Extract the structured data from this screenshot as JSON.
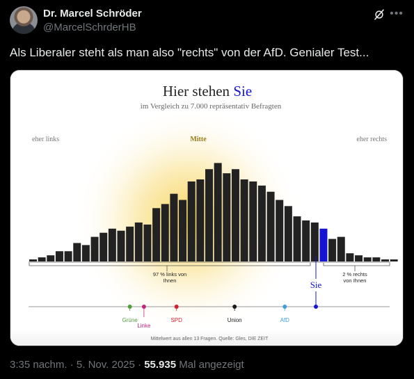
{
  "author": {
    "name": "Dr. Marcel Schröder",
    "handle": "@MarcelSchrderHB"
  },
  "tweet": {
    "text": "Als Liberaler steht als man also \"rechts\" von der AfD. Genialer Test..."
  },
  "meta": {
    "time": "3:35 nachm.",
    "date": "5. Nov. 2025",
    "separator": "·",
    "views": "55.935",
    "views_label": "Mal angezeigt"
  },
  "icons": {
    "grok": "grok-icon",
    "more": "more-icon",
    "avatar": "avatar"
  },
  "colors": {
    "bar": "#222222",
    "highlight": "#1414d2",
    "glow": "#f5d256",
    "gruene": "#4f9e3a",
    "linke": "#c2257c",
    "spd": "#d3202f",
    "union": "#1a1a1a",
    "afd": "#3e9fd8"
  },
  "chart_data": {
    "type": "bar",
    "title_prefix": "Hier stehen ",
    "title_highlight": "Sie",
    "subtitle": "im Vergleich zu 7.000 repräsentativ Befragten",
    "left_label": "eher links",
    "center_label": "Mitte",
    "right_label": "eher rechts",
    "values": [
      1,
      2,
      3,
      5,
      5,
      9,
      8,
      12,
      14,
      16,
      15,
      17,
      19,
      18,
      26,
      28,
      33,
      30,
      39,
      40,
      45,
      48,
      43,
      45,
      40,
      39,
      37,
      34,
      30,
      27,
      22,
      20,
      19,
      16,
      11,
      12,
      4,
      3,
      2,
      2,
      1,
      1
    ],
    "user_bar_index": 33,
    "user_label": "Sie",
    "left_annotation_line1": "97 % links von",
    "left_annotation_line2": "Ihnen",
    "right_annotation_line1": "2 % rechts",
    "right_annotation_line2": "von Ihnen",
    "parties": [
      {
        "name": "Grüne",
        "position": 11,
        "color_key": "gruene",
        "label_row": 0
      },
      {
        "name": "Linke",
        "position": 12.6,
        "color_key": "linke",
        "label_row": 1
      },
      {
        "name": "SPD",
        "position": 16.3,
        "color_key": "spd",
        "label_row": 0
      },
      {
        "name": "Union",
        "position": 22.9,
        "color_key": "union",
        "label_row": 0
      },
      {
        "name": "AfD",
        "position": 28.6,
        "color_key": "afd",
        "label_row": 0
      }
    ],
    "footnote": "Mittelwert aus allen 13 Fragen. Quelle: Gles, DIE ZEIT"
  }
}
